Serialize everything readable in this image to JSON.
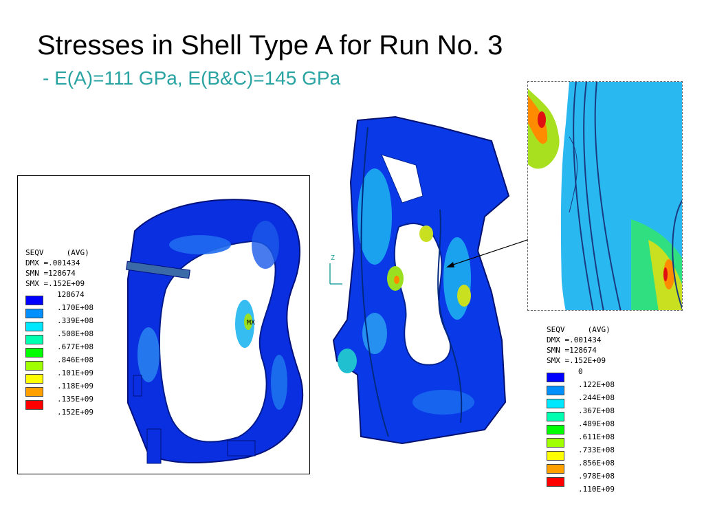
{
  "slide": {
    "title": "Stresses in Shell Type A for Run No. 3",
    "subtitle": "- E(A)=111 GPa, E(B&C)=145 GPa"
  },
  "left_plot": {
    "legend": {
      "header": [
        "SEQV     (AVG)",
        "DMX =.001434",
        "SMN =128674",
        "SMX =.152E+09"
      ],
      "entries": [
        {
          "label": "128674",
          "color": "#0000ff"
        },
        {
          "label": ".170E+08",
          "color": "#0090ff"
        },
        {
          "label": ".339E+08",
          "color": "#00e8ff"
        },
        {
          "label": ".508E+08",
          "color": "#00ffb0"
        },
        {
          "label": ".677E+08",
          "color": "#00ff00"
        },
        {
          "label": ".846E+08",
          "color": "#a0ff00"
        },
        {
          "label": ".101E+09",
          "color": "#ffff00"
        },
        {
          "label": ".118E+09",
          "color": "#ffa000"
        },
        {
          "label": ".135E+09",
          "color": "#ff0000"
        },
        {
          "label": ".152E+09",
          "color": null
        }
      ]
    },
    "max_marker": "MX"
  },
  "center_plot": {
    "axis_label": "Z"
  },
  "right_legend": {
    "header": [
      "SEQV     (AVG)",
      "DMX =.001434",
      "SMN =128674",
      "SMX =.152E+09"
    ],
    "entries": [
      {
        "label": "0",
        "color": "#0000ff"
      },
      {
        "label": ".122E+08",
        "color": "#0090ff"
      },
      {
        "label": ".244E+08",
        "color": "#00e8ff"
      },
      {
        "label": ".367E+08",
        "color": "#00ffb0"
      },
      {
        "label": ".489E+08",
        "color": "#00ff00"
      },
      {
        "label": ".611E+08",
        "color": "#a0ff00"
      },
      {
        "label": ".733E+08",
        "color": "#ffff00"
      },
      {
        "label": ".856E+08",
        "color": "#ffa000"
      },
      {
        "label": ".978E+08",
        "color": "#ff0000"
      },
      {
        "label": ".110E+09",
        "color": null
      }
    ]
  }
}
